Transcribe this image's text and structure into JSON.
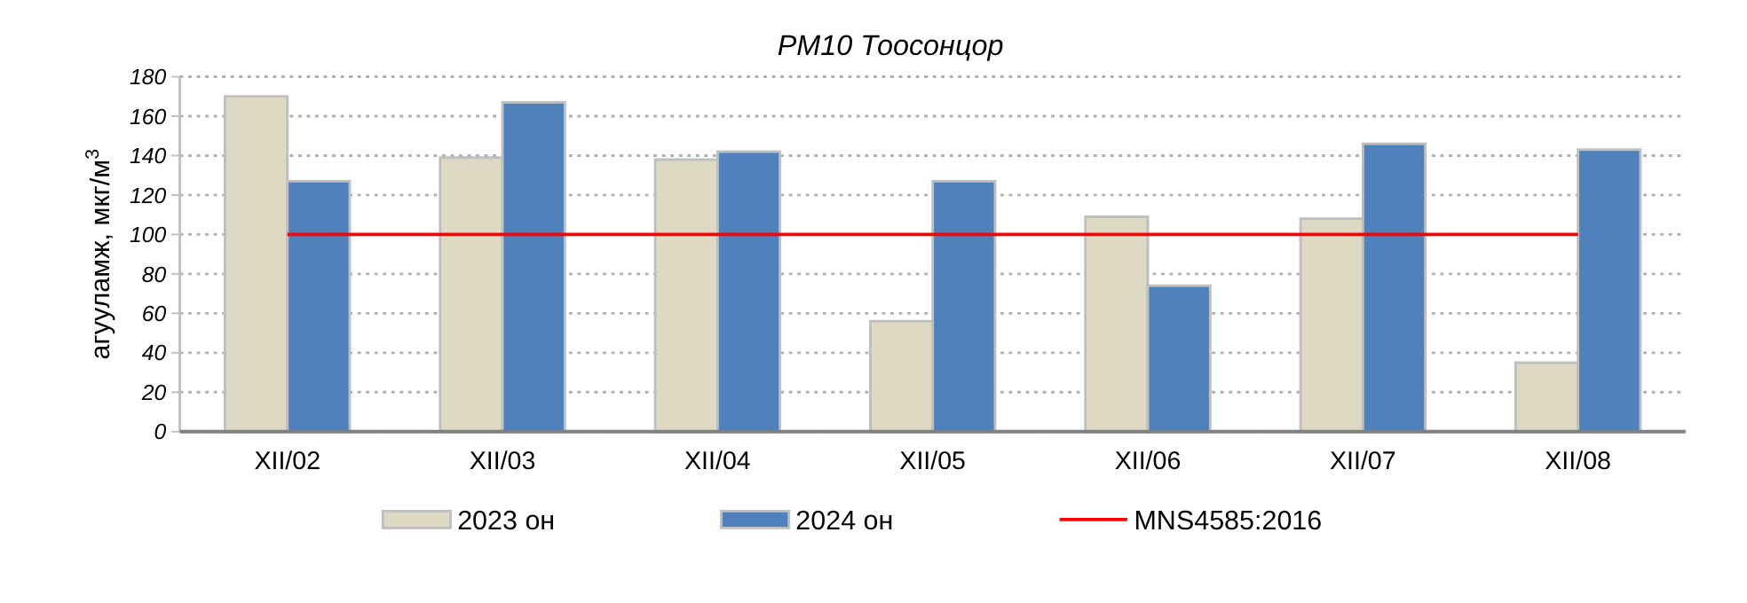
{
  "chart_data": {
    "type": "bar",
    "title": "PM10 Тоосонцор",
    "ylabel": "агууламж, мкг/м$^{3}$",
    "categories": [
      "XII/02",
      "XII/03",
      "XII/04",
      "XII/05",
      "XII/06",
      "XII/07",
      "XII/08"
    ],
    "series": [
      {
        "name": "2023 он",
        "color": "#ddd9c3",
        "values": [
          170,
          139,
          138,
          56,
          109,
          108,
          35
        ]
      },
      {
        "name": "2024 он",
        "color": "#4f81bd",
        "values": [
          127,
          167,
          142,
          127,
          74,
          146,
          143
        ]
      },
      {
        "name": "MNS4585:2016",
        "type": "line",
        "color": "#ff0000",
        "values": [
          100,
          100,
          100,
          100,
          100,
          100,
          100
        ]
      }
    ],
    "ylim": [
      0,
      180
    ],
    "yticks": [
      0,
      20,
      40,
      60,
      80,
      100,
      120,
      140,
      160,
      180
    ],
    "grid": "y",
    "legend": "bottom"
  }
}
